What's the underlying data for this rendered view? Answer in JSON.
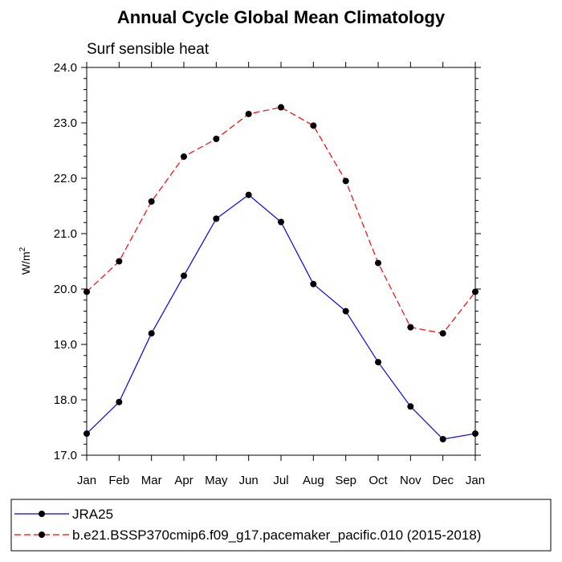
{
  "chart_data": {
    "type": "line",
    "title": "Annual Cycle Global Mean Climatology",
    "subtitle": "Surf sensible heat",
    "ylabel_base": "W/m",
    "ylabel_sup": "2",
    "xlabel": "",
    "ylim": [
      17.0,
      24.0
    ],
    "yticks": [
      "17.0",
      "18.0",
      "19.0",
      "20.0",
      "21.0",
      "22.0",
      "23.0",
      "24.0"
    ],
    "categories": [
      "Jan",
      "Feb",
      "Mar",
      "Apr",
      "May",
      "Jun",
      "Jul",
      "Aug",
      "Sep",
      "Oct",
      "Nov",
      "Dec",
      "Jan"
    ],
    "series": [
      {
        "name": "JRA25",
        "color": "#0000ff",
        "dash": "solid",
        "values": [
          17.39,
          17.96,
          19.2,
          20.24,
          21.27,
          21.7,
          21.21,
          20.09,
          19.6,
          18.68,
          17.88,
          17.29,
          17.39
        ]
      },
      {
        "name": "b.e21.BSSP370cmip6.f09_g17.pacemaker_pacific.010 (2015-2018)",
        "color": "#ff0000",
        "dash": "dashed",
        "values": [
          19.95,
          20.5,
          21.58,
          22.39,
          22.71,
          23.16,
          23.28,
          22.95,
          21.95,
          20.47,
          19.31,
          19.2,
          19.95
        ]
      }
    ],
    "grid": false,
    "legend_position": "bottom"
  }
}
